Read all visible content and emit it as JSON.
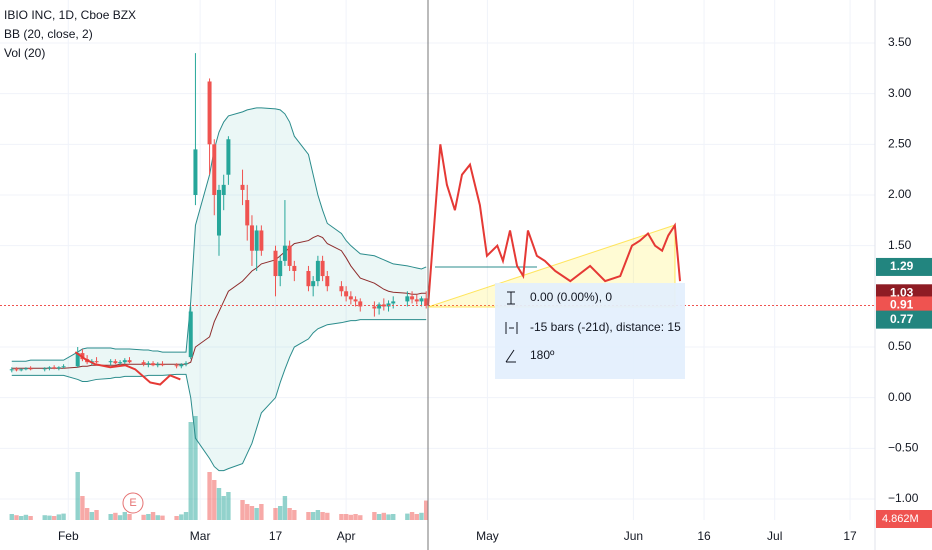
{
  "chart_data": {
    "type": "candlestick",
    "title": "IBIO INC, 1D, Cboe BZX",
    "indicators": [
      "BB (20, close, 2)",
      "Vol (20)"
    ],
    "earnings_marker": "E",
    "tooltip": [
      "0.00 (0.00%), 0",
      "-15 bars (-21d), distance: 15",
      "180º"
    ],
    "xlim": [
      17.5,
      203.3
    ],
    "ylim": [
      -1.207,
      3.924
    ],
    "grid": true,
    "xticks": [
      {
        "value": 32,
        "label": "Feb"
      },
      {
        "value": 60,
        "label": "Mar"
      },
      {
        "value": 76,
        "label": "17"
      },
      {
        "value": 91,
        "label": "Apr"
      },
      {
        "value": 121,
        "label": "May"
      },
      {
        "value": 152,
        "label": "Jun"
      },
      {
        "value": 167,
        "label": "16"
      },
      {
        "value": 182,
        "label": "Jul"
      },
      {
        "value": 198,
        "label": "17"
      }
    ],
    "yticks": [
      {
        "value": 3.5,
        "label": "3.50"
      },
      {
        "value": 3,
        "label": "3.00"
      },
      {
        "value": 2.5,
        "label": "2.50"
      },
      {
        "value": 2,
        "label": "2.00"
      },
      {
        "value": 1.5,
        "label": "1.50"
      },
      {
        "value": 0.5,
        "label": "0.50"
      },
      {
        "value": 0,
        "label": "0.00"
      },
      {
        "value": -0.5,
        "label": "−0.50"
      },
      {
        "value": -1,
        "label": "−1.00"
      }
    ],
    "up_color": "#26a69a",
    "down_color": "#ef5350",
    "x": [
      20,
      21,
      22,
      23,
      24,
      27,
      28,
      29,
      30,
      31,
      34,
      35,
      36,
      37,
      38,
      41,
      42,
      43,
      44,
      45,
      48,
      49,
      50,
      51,
      52,
      55,
      56,
      57,
      58,
      59,
      62,
      63,
      64,
      65,
      66,
      69,
      70,
      71,
      72,
      73,
      76,
      77,
      78,
      79,
      80,
      83,
      84,
      85,
      86,
      87,
      90,
      91,
      92,
      93,
      94,
      97,
      98,
      99,
      100,
      101,
      104,
      105,
      106,
      107,
      108
    ],
    "open": [
      0.27,
      0.28,
      0.27,
      0.28,
      0.29,
      0.28,
      0.29,
      0.3,
      0.29,
      0.3,
      0.31,
      0.44,
      0.38,
      0.35,
      0.36,
      0.35,
      0.36,
      0.34,
      0.35,
      0.37,
      0.35,
      0.33,
      0.34,
      0.32,
      0.33,
      0.32,
      0.31,
      0.33,
      0.4,
      2.0,
      3.12,
      2.5,
      1.6,
      2.0,
      2.2,
      2.1,
      1.95,
      1.7,
      1.45,
      1.65,
      1.45,
      1.2,
      1.35,
      1.5,
      1.3,
      1.25,
      1.1,
      1.15,
      1.35,
      1.2,
      1.1,
      1.05,
      1.0,
      0.97,
      0.95,
      0.9,
      0.88,
      0.92,
      0.9,
      0.93,
      0.95,
      1.0,
      0.97,
      0.95,
      0.98
    ],
    "high": [
      0.3,
      0.3,
      0.29,
      0.3,
      0.31,
      0.3,
      0.31,
      0.32,
      0.31,
      0.33,
      0.5,
      0.48,
      0.42,
      0.38,
      0.4,
      0.38,
      0.38,
      0.37,
      0.39,
      0.4,
      0.37,
      0.36,
      0.36,
      0.35,
      0.36,
      0.34,
      0.34,
      0.36,
      0.9,
      3.4,
      3.15,
      2.55,
      2.1,
      2.2,
      2.58,
      2.25,
      2.1,
      1.8,
      1.7,
      1.7,
      1.5,
      1.4,
      1.95,
      1.55,
      1.35,
      1.3,
      1.2,
      1.4,
      1.4,
      1.25,
      1.15,
      1.1,
      1.05,
      1.0,
      0.98,
      0.95,
      0.94,
      0.98,
      0.96,
      1.0,
      1.05,
      1.05,
      1.02,
      1.0,
      1.05
    ],
    "low": [
      0.25,
      0.26,
      0.26,
      0.27,
      0.27,
      0.26,
      0.27,
      0.28,
      0.27,
      0.29,
      0.3,
      0.36,
      0.33,
      0.32,
      0.34,
      0.32,
      0.33,
      0.32,
      0.33,
      0.34,
      0.31,
      0.3,
      0.31,
      0.3,
      0.31,
      0.29,
      0.29,
      0.31,
      0.38,
      1.9,
      2.2,
      1.8,
      1.4,
      1.85,
      2.1,
      1.9,
      1.55,
      1.3,
      1.25,
      1.4,
      1.0,
      1.1,
      1.3,
      1.25,
      1.15,
      1.05,
      1.0,
      1.1,
      1.15,
      1.05,
      1.0,
      0.95,
      0.92,
      0.9,
      0.85,
      0.8,
      0.82,
      0.86,
      0.85,
      0.88,
      0.9,
      0.93,
      0.92,
      0.9,
      0.88
    ],
    "close": [
      0.28,
      0.27,
      0.28,
      0.29,
      0.28,
      0.29,
      0.3,
      0.29,
      0.3,
      0.31,
      0.44,
      0.38,
      0.35,
      0.36,
      0.35,
      0.36,
      0.34,
      0.35,
      0.37,
      0.35,
      0.33,
      0.34,
      0.32,
      0.33,
      0.32,
      0.31,
      0.33,
      0.34,
      0.85,
      2.45,
      2.5,
      2.0,
      2.05,
      2.1,
      2.55,
      2.05,
      1.7,
      1.45,
      1.65,
      1.45,
      1.2,
      1.35,
      1.5,
      1.3,
      1.25,
      1.1,
      1.15,
      1.35,
      1.2,
      1.1,
      1.05,
      1.0,
      0.97,
      0.95,
      0.9,
      0.88,
      0.92,
      0.9,
      0.93,
      0.95,
      1.0,
      0.97,
      0.95,
      0.98,
      0.91
    ],
    "series": [
      {
        "color": "#2b8c8c",
        "values": [
          0.36,
          0.36,
          0.36,
          0.36,
          0.37,
          0.37,
          0.37,
          0.37,
          0.37,
          0.37,
          0.45,
          0.48,
          0.49,
          0.49,
          0.49,
          0.49,
          0.48,
          0.48,
          0.48,
          0.48,
          0.47,
          0.47,
          0.46,
          0.46,
          0.45,
          0.45,
          0.45,
          0.45,
          0.95,
          1.7,
          2.2,
          2.45,
          2.62,
          2.72,
          2.78,
          2.82,
          2.84,
          2.85,
          2.86,
          2.86,
          2.85,
          2.84,
          2.8,
          2.72,
          2.58,
          2.4,
          2.2,
          2.0,
          1.85,
          1.72,
          1.62,
          1.55,
          1.5,
          1.46,
          1.42,
          1.4,
          1.38,
          1.36,
          1.34,
          1.32,
          1.3,
          1.29,
          1.28,
          1.27,
          1.29
        ]
      },
      {
        "color": "#8e2c2c",
        "values": [
          0.29,
          0.29,
          0.29,
          0.29,
          0.29,
          0.29,
          0.29,
          0.29,
          0.29,
          0.29,
          0.3,
          0.31,
          0.31,
          0.32,
          0.32,
          0.32,
          0.32,
          0.33,
          0.33,
          0.33,
          0.33,
          0.33,
          0.33,
          0.33,
          0.33,
          0.33,
          0.33,
          0.33,
          0.35,
          0.5,
          0.6,
          0.75,
          0.85,
          0.95,
          1.05,
          1.15,
          1.2,
          1.25,
          1.28,
          1.32,
          1.36,
          1.4,
          1.44,
          1.48,
          1.52,
          1.55,
          1.58,
          1.6,
          1.58,
          1.52,
          1.45,
          1.38,
          1.3,
          1.24,
          1.18,
          1.13,
          1.1,
          1.07,
          1.05,
          1.04,
          1.03,
          1.02,
          1.02,
          1.03,
          1.03
        ]
      },
      {
        "color": "#2b8c8c",
        "values": [
          0.22,
          0.22,
          0.22,
          0.22,
          0.22,
          0.22,
          0.22,
          0.22,
          0.22,
          0.22,
          0.18,
          0.16,
          0.16,
          0.17,
          0.18,
          0.19,
          0.2,
          0.2,
          0.21,
          0.21,
          0.21,
          0.22,
          0.22,
          0.22,
          0.22,
          0.23,
          0.23,
          0.23,
          0.0,
          -0.4,
          -0.6,
          -0.68,
          -0.72,
          -0.72,
          -0.7,
          -0.65,
          -0.55,
          -0.45,
          -0.3,
          -0.15,
          0.0,
          0.15,
          0.28,
          0.4,
          0.5,
          0.58,
          0.64,
          0.68,
          0.7,
          0.72,
          0.74,
          0.75,
          0.76,
          0.76,
          0.77,
          0.77,
          0.77,
          0.77,
          0.77,
          0.77,
          0.77,
          0.77,
          0.77,
          0.77,
          0.77
        ]
      }
    ],
    "drawings": [
      {
        "color": "#e53935",
        "x": [
          33.5,
          35.6,
          37.7,
          40.9,
          44.1,
          46.2,
          49.4,
          51.5,
          53.6,
          55.8
        ],
        "values": [
          0.45,
          0.38,
          0.33,
          0.3,
          0.32,
          0.28,
          0.15,
          0.13,
          0.22,
          0.18
        ]
      },
      {
        "color": "#e53935",
        "x": [
          108.4,
          111,
          112.4,
          114.1,
          115.6,
          117.3,
          119.4,
          120.9,
          123.1,
          124.3,
          125.8,
          127.3,
          128.6,
          129.6,
          131.5,
          133.2,
          135.4,
          138.6,
          142.8,
          146,
          149.2,
          151.7,
          153.4,
          155.1,
          156.6,
          158.1,
          159.4,
          160.8,
          161.9
        ],
        "values": [
          0.91,
          2.5,
          2.1,
          1.85,
          2.2,
          2.3,
          1.9,
          1.4,
          1.5,
          1.35,
          1.65,
          1.3,
          1.2,
          1.65,
          1.4,
          1.35,
          1.25,
          1.15,
          1.3,
          1.15,
          1.2,
          1.5,
          1.55,
          1.62,
          1.5,
          1.45,
          1.6,
          1.7,
          1.15
        ]
      }
    ],
    "volume": {
      "ylim": [
        0,
        60
      ],
      "values": [
        1.5,
        1.2,
        1,
        1.3,
        1,
        1.2,
        1.1,
        1,
        1.4,
        1.6,
        12,
        6,
        3,
        2,
        2.5,
        1.5,
        1.8,
        1.2,
        2,
        1.5,
        1.3,
        1.5,
        2,
        1.2,
        1.1,
        1,
        1.4,
        2,
        24.5,
        26,
        12,
        10,
        8,
        6,
        7,
        5,
        4,
        3.5,
        3,
        4,
        3,
        3.5,
        6,
        3,
        2.5,
        2,
        2,
        2.5,
        2,
        1.8,
        1.5,
        1.5,
        1.3,
        1.5,
        1.2,
        2,
        1.5,
        1.8,
        1.4,
        1.5,
        1.6,
        2,
        1.5,
        1.8,
        4.862
      ]
    },
    "volume_badge": {
      "value": 4.862,
      "label": "4.862M",
      "color": "#ef5350"
    },
    "price_badges": [
      {
        "value": 1.29,
        "color": "#22857f"
      },
      {
        "value": 1.03,
        "color": "#8e1c24"
      },
      {
        "value": 0.91,
        "color": "#ef5350"
      },
      {
        "value": 0.77,
        "color": "#22857f"
      }
    ]
  }
}
